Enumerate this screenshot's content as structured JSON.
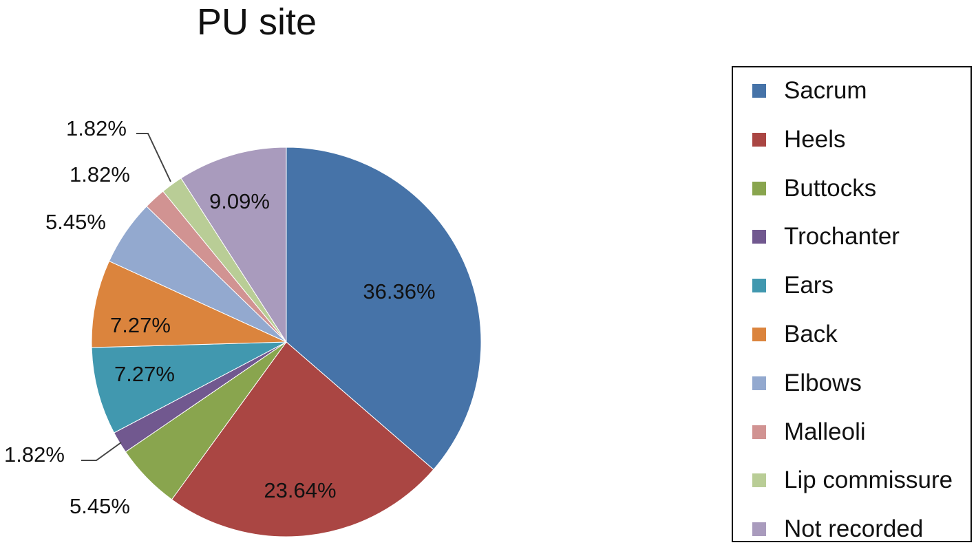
{
  "chart_data": {
    "type": "pie",
    "title": "PU site",
    "slices": [
      {
        "label": "Sacrum",
        "value": 36.36,
        "value_label": "36.36%",
        "color": "#4673A8"
      },
      {
        "label": "Heels",
        "value": 23.64,
        "value_label": "23.64%",
        "color": "#AA4643"
      },
      {
        "label": "Buttocks",
        "value": 5.45,
        "value_label": "5.45%",
        "color": "#89A54E"
      },
      {
        "label": "Trochanter",
        "value": 1.82,
        "value_label": "1.82%",
        "color": "#71588F"
      },
      {
        "label": "Ears",
        "value": 7.27,
        "value_label": "7.27%",
        "color": "#4198AF"
      },
      {
        "label": "Back",
        "value": 7.27,
        "value_label": "7.27%",
        "color": "#DB843D"
      },
      {
        "label": "Elbows",
        "value": 5.45,
        "value_label": "5.45%",
        "color": "#93A9CF"
      },
      {
        "label": "Malleoli",
        "value": 1.82,
        "value_label": "1.82%",
        "color": "#D19392"
      },
      {
        "label": "Lip commissure",
        "value": 1.82,
        "value_label": "1.82%",
        "color": "#B9CD96"
      },
      {
        "label": "Not recorded",
        "value": 9.09,
        "value_label": "9.09%",
        "color": "#A99BBD"
      }
    ],
    "start_angle": "12 o'clock",
    "direction": "clockwise",
    "legend_position": "right"
  }
}
